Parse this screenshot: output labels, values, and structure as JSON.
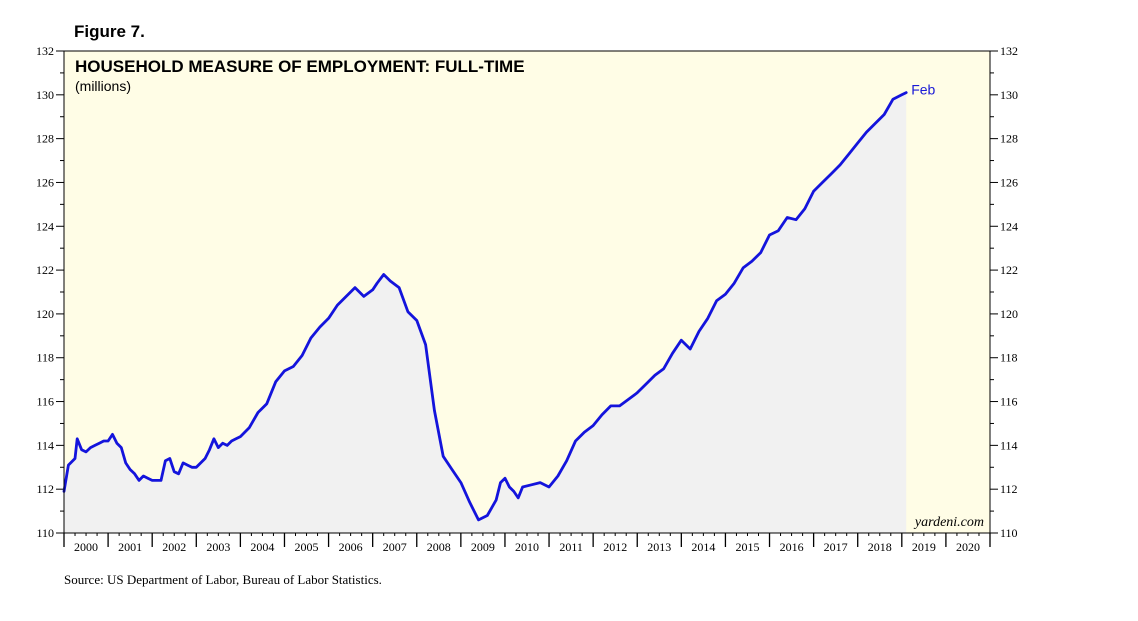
{
  "figure_label": "Figure 7.",
  "source_text": "Source: US Department of Labor, Bureau of Labor Statistics.",
  "watermark": "yardeni.com",
  "colors": {
    "background": "#fffde6",
    "area": "#f1f1f1",
    "line": "#1414dc",
    "end_label": "#1a1ad6"
  },
  "chart_data": {
    "type": "area",
    "title": "HOUSEHOLD MEASURE OF EMPLOYMENT: FULL-TIME",
    "subtitle": "(millions)",
    "xlabel": "",
    "ylabel": "",
    "ylim": [
      110,
      132
    ],
    "xlim": [
      2000,
      2021
    ],
    "y_major_ticks": [
      110,
      112,
      114,
      116,
      118,
      120,
      122,
      124,
      126,
      128,
      130,
      132
    ],
    "y_tick_labels": [
      "110",
      "112",
      "114",
      "116",
      "118",
      "120",
      "122",
      "124",
      "126",
      "128",
      "130",
      "132"
    ],
    "year_labels": [
      "2000",
      "2001",
      "2002",
      "2003",
      "2004",
      "2005",
      "2006",
      "2007",
      "2008",
      "2009",
      "2010",
      "2011",
      "2012",
      "2013",
      "2014",
      "2015",
      "2016",
      "2017",
      "2018",
      "2019",
      "2020"
    ],
    "end_label": "Feb",
    "grid": false,
    "series": [
      {
        "name": "Full-time employment (millions)",
        "x": [
          2000.0,
          2000.1,
          2000.25,
          2000.3,
          2000.4,
          2000.5,
          2000.6,
          2000.7,
          2000.8,
          2000.9,
          2001.0,
          2001.1,
          2001.2,
          2001.3,
          2001.4,
          2001.5,
          2001.6,
          2001.7,
          2001.8,
          2001.9,
          2002.0,
          2002.1,
          2002.2,
          2002.3,
          2002.4,
          2002.5,
          2002.6,
          2002.7,
          2002.8,
          2002.9,
          2003.0,
          2003.1,
          2003.2,
          2003.3,
          2003.4,
          2003.5,
          2003.6,
          2003.7,
          2003.8,
          2003.9,
          2004.0,
          2004.2,
          2004.4,
          2004.6,
          2004.8,
          2005.0,
          2005.2,
          2005.4,
          2005.6,
          2005.8,
          2006.0,
          2006.2,
          2006.4,
          2006.6,
          2006.8,
          2007.0,
          2007.1,
          2007.25,
          2007.4,
          2007.6,
          2007.8,
          2008.0,
          2008.2,
          2008.4,
          2008.6,
          2008.8,
          2009.0,
          2009.2,
          2009.4,
          2009.6,
          2009.8,
          2009.9,
          2010.0,
          2010.1,
          2010.2,
          2010.3,
          2010.4,
          2010.6,
          2010.8,
          2011.0,
          2011.2,
          2011.4,
          2011.6,
          2011.8,
          2012.0,
          2012.2,
          2012.4,
          2012.6,
          2012.8,
          2013.0,
          2013.2,
          2013.4,
          2013.6,
          2013.8,
          2014.0,
          2014.2,
          2014.4,
          2014.6,
          2014.8,
          2015.0,
          2015.2,
          2015.4,
          2015.6,
          2015.8,
          2016.0,
          2016.2,
          2016.4,
          2016.6,
          2016.8,
          2017.0,
          2017.2,
          2017.4,
          2017.6,
          2017.8,
          2018.0,
          2018.2,
          2018.4,
          2018.6,
          2018.8,
          2019.0,
          2019.1
        ],
        "values": [
          111.9,
          113.1,
          113.4,
          114.3,
          113.8,
          113.7,
          113.9,
          114.0,
          114.1,
          114.2,
          114.2,
          114.5,
          114.1,
          113.9,
          113.2,
          112.9,
          112.7,
          112.4,
          112.6,
          112.5,
          112.4,
          112.4,
          112.4,
          113.3,
          113.4,
          112.8,
          112.7,
          113.2,
          113.1,
          113.0,
          113.0,
          113.2,
          113.4,
          113.8,
          114.3,
          113.9,
          114.1,
          114.0,
          114.2,
          114.3,
          114.4,
          114.8,
          115.5,
          115.9,
          116.9,
          117.4,
          117.6,
          118.1,
          118.9,
          119.4,
          119.8,
          120.4,
          120.8,
          121.2,
          120.8,
          121.1,
          121.4,
          121.8,
          121.5,
          121.2,
          120.1,
          119.7,
          118.6,
          115.6,
          113.5,
          112.9,
          112.3,
          111.4,
          110.6,
          110.8,
          111.5,
          112.3,
          112.5,
          112.1,
          111.9,
          111.6,
          112.1,
          112.2,
          112.3,
          112.1,
          112.6,
          113.3,
          114.2,
          114.6,
          114.9,
          115.4,
          115.8,
          115.8,
          116.1,
          116.4,
          116.8,
          117.2,
          117.5,
          118.2,
          118.8,
          118.4,
          119.2,
          119.8,
          120.6,
          120.9,
          121.4,
          122.1,
          122.4,
          122.8,
          123.6,
          123.8,
          124.4,
          124.3,
          124.8,
          125.6,
          126.0,
          126.4,
          126.8,
          127.3,
          127.8,
          128.3,
          128.7,
          129.1,
          129.8,
          130.0,
          130.1
        ]
      }
    ]
  }
}
